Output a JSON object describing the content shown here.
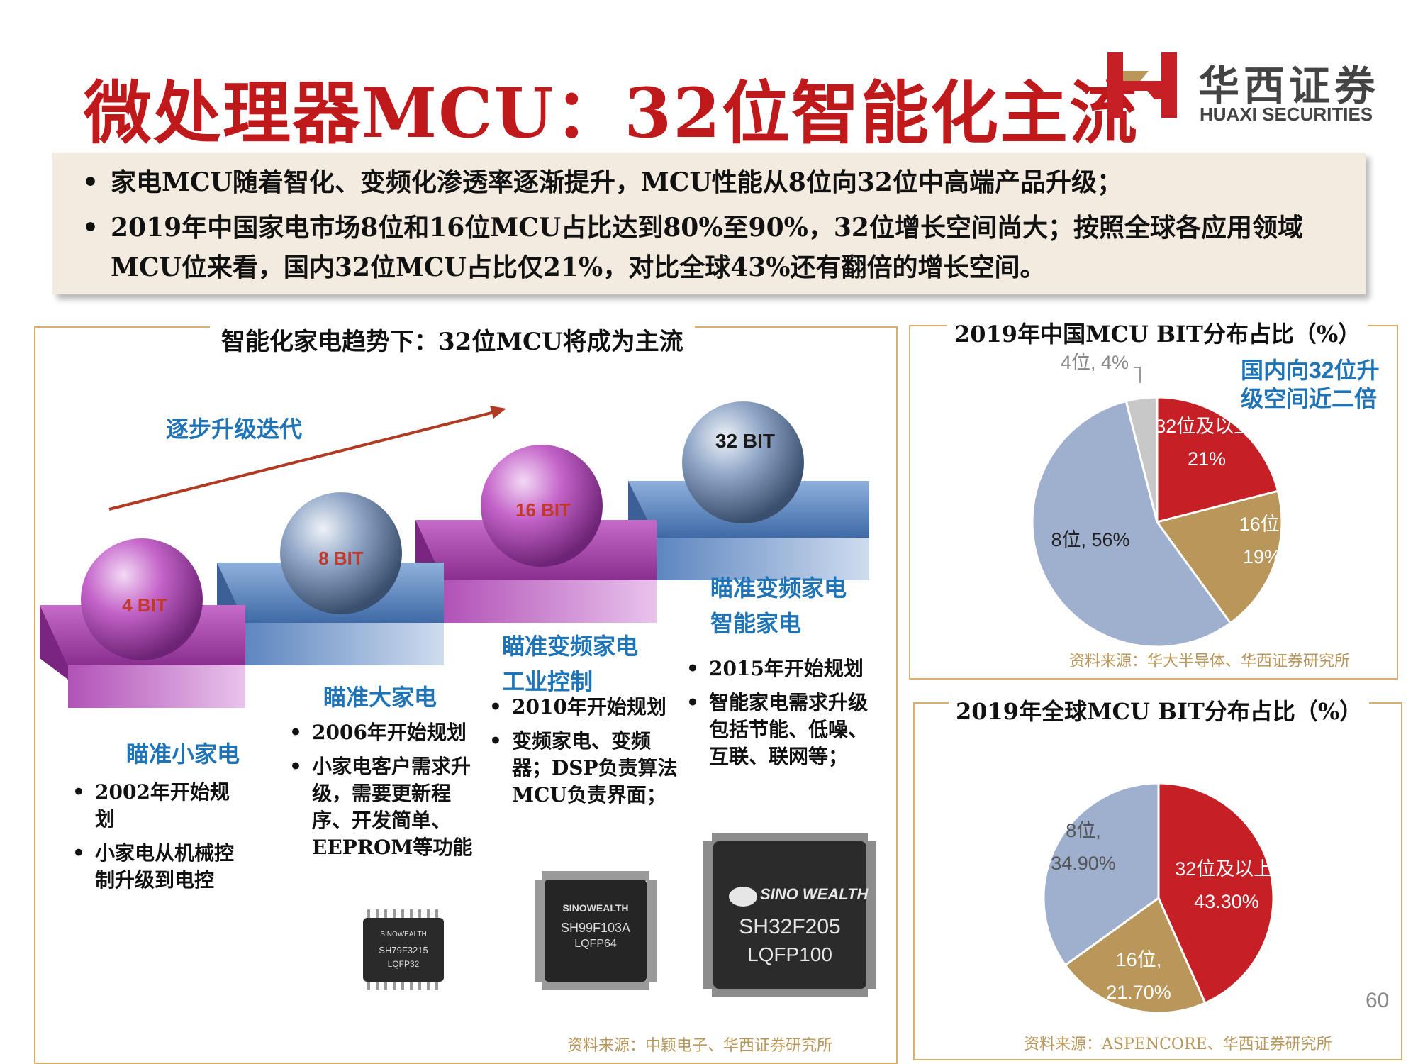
{
  "header": {
    "title": "微处理器MCU：32位智能化主流",
    "logo_cn": "华西证券",
    "logo_en": "HUAXI SECURITIES"
  },
  "summary": {
    "bullets": [
      "家电MCU随着智化、变频化渗透率逐渐提升，MCU性能从8位向32位中高端产品升级；",
      "2019年中国家电市场8位和16位MCU占比达到80%至90%，32位增长空间尚大；按照全球各应用领域MCU位来看，国内32位MCU占比仅21%，对比全球43%还有翻倍的增长空间。"
    ]
  },
  "left_panel": {
    "title": "智能化家电趋势下：32位MCU将成为主流",
    "arrow_label": "逐步升级迭代",
    "spheres": [
      "4 BIT",
      "8 BIT",
      "16 BIT",
      "32 BIT"
    ],
    "steps": [
      {
        "label": "瞄准小家电",
        "bullets": [
          "2002年开始规划",
          "小家电从机械控制升级到电控"
        ]
      },
      {
        "label": "瞄准大家电",
        "bullets": [
          "2006年开始规划",
          "小家电客户需求升级，需要更新程序、开发简单、EEPROM等功能"
        ]
      },
      {
        "label_lines": [
          "瞄准变频家电",
          "工业控制"
        ],
        "bullets": [
          "2010年开始规划",
          "变频家电、变频器；DSP负责算法MCU负责界面；"
        ]
      },
      {
        "label_lines": [
          "瞄准变频家电",
          "智能家电"
        ],
        "bullets": [
          "2015年开始规划",
          "智能家电需求升级包括节能、低噪、互联、联网等；"
        ]
      }
    ],
    "chips": [
      {
        "brand": "SINOWEALTH",
        "model": "SH79F3215",
        "package": "LQFP32"
      },
      {
        "brand": "SINOWEALTH",
        "model": "SH99F103A",
        "package": "LQFP64"
      },
      {
        "brand": "SINO WEALTH",
        "model": "SH32F205",
        "package": "LQFP100"
      }
    ],
    "source": "资料来源：中颖电子、华西证券研究所"
  },
  "chart_data": [
    {
      "type": "pie",
      "title": "2019年中国MCU BIT分布占比（%）",
      "slices": [
        {
          "name": "32位及以上",
          "value": 21,
          "label": "32位及以上, 21%",
          "color": "#c62026"
        },
        {
          "name": "16位",
          "value": 19,
          "label": "16位, 19%",
          "color": "#b9975a"
        },
        {
          "name": "8位",
          "value": 56,
          "label": "8位, 56%",
          "color": "#9fb0cf"
        },
        {
          "name": "4位",
          "value": 4,
          "label": "4位, 4%",
          "color": "#c8c8c8"
        }
      ],
      "annotation": "国内向32位升级空间近二倍",
      "source": "资料来源：华大半导体、华西证券研究所"
    },
    {
      "type": "pie",
      "title": "2019年全球MCU BIT分布占比（%）",
      "slices": [
        {
          "name": "32位及以上",
          "value": 43.3,
          "label": "32位及以上, 43.30%",
          "color": "#c62026"
        },
        {
          "name": "16位",
          "value": 21.7,
          "label": "16位, 21.70%",
          "color": "#b9975a"
        },
        {
          "name": "8位",
          "value": 34.9,
          "label": "8位, 34.90%",
          "color": "#9fb0cf"
        }
      ],
      "source": "资料来源：ASPENCORE、华西证券研究所"
    }
  ],
  "footer": {
    "page_number": "60"
  }
}
